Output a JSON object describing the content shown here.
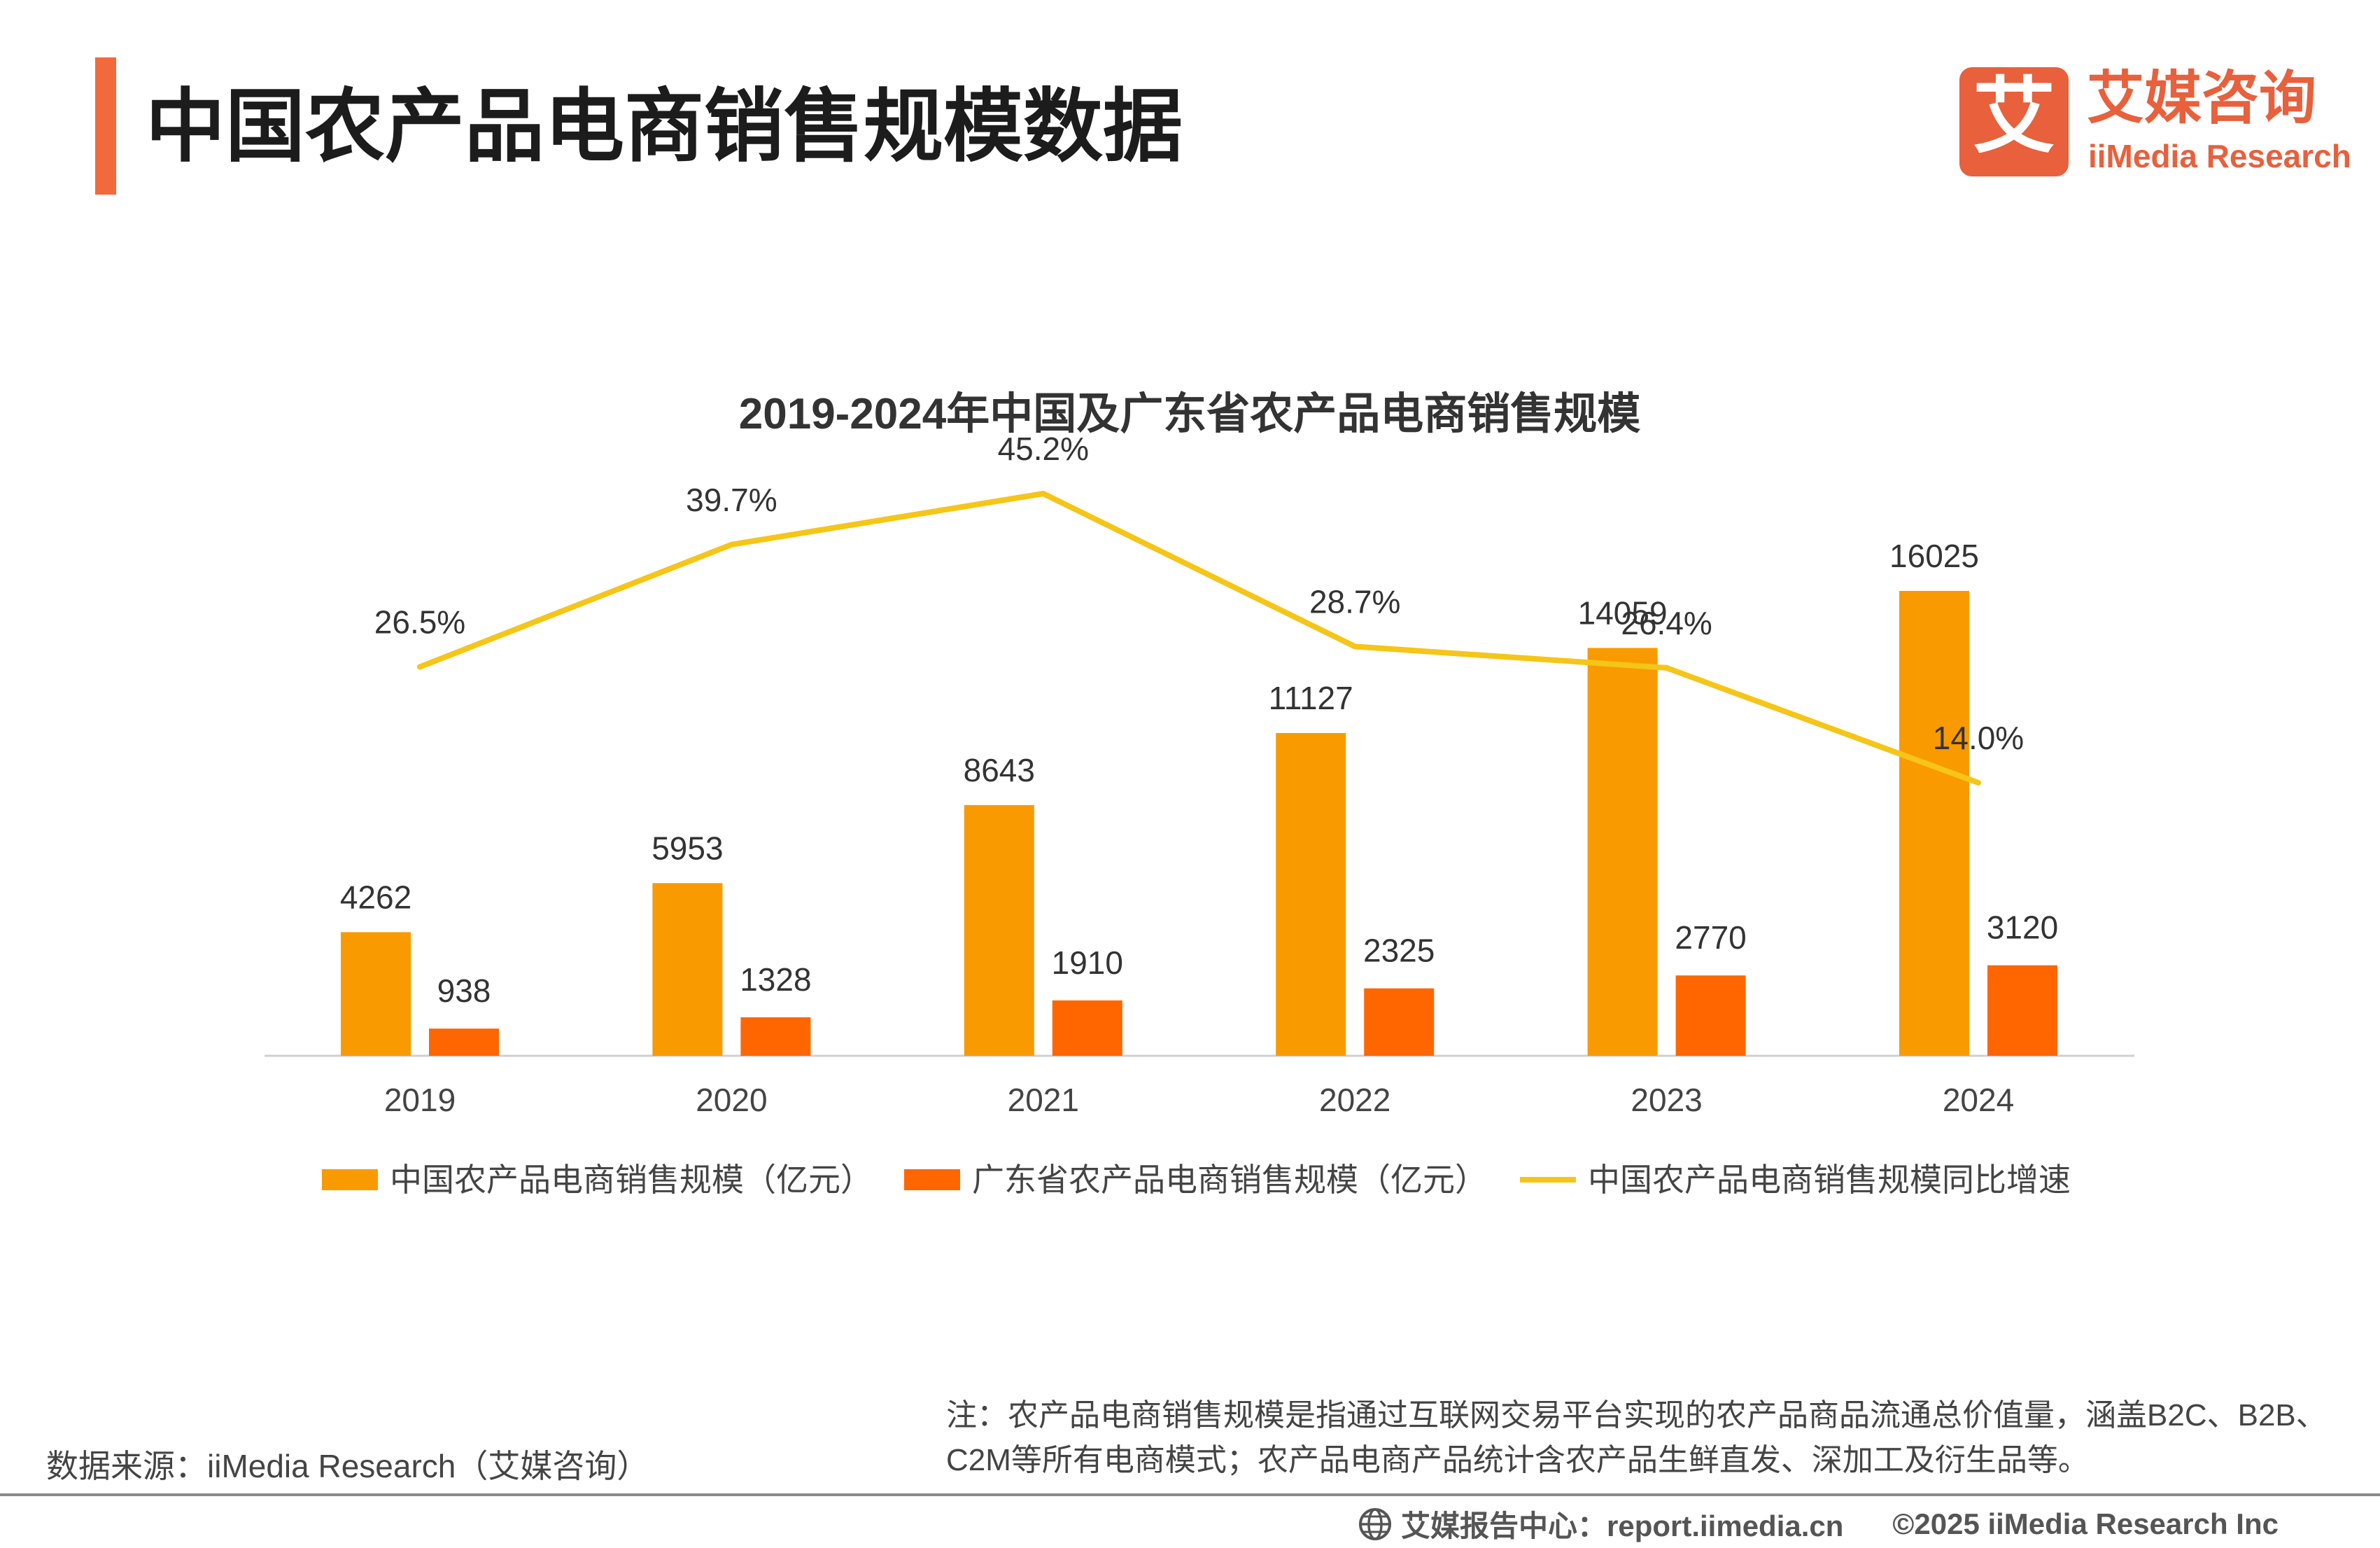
{
  "header": {
    "title": "中国农产品电商销售规模数据",
    "accent_color": "#f26a3c"
  },
  "logo": {
    "glyph": "艾",
    "name_cn": "艾媒咨询",
    "name_en": "iiMedia Research",
    "color": "#e8603c"
  },
  "chart_data": {
    "type": "bar",
    "title": "2019-2024年中国及广东省农产品电商销售规模",
    "xlabel": "",
    "ylabel": "",
    "categories": [
      "2019",
      "2020",
      "2021",
      "2022",
      "2023",
      "2024"
    ],
    "series": [
      {
        "name": "中国农产品电商销售规模（亿元）",
        "type": "bar",
        "color": "#f99a00",
        "values": [
          4262,
          5953,
          8643,
          11127,
          14059,
          16025
        ]
      },
      {
        "name": "广东省农产品电商销售规模（亿元）",
        "type": "bar",
        "color": "#ff6600",
        "values": [
          938,
          1328,
          1910,
          2325,
          2770,
          3120
        ]
      },
      {
        "name": "中国农产品电商销售规模同比增速",
        "type": "line",
        "color": "#f5c518",
        "values": [
          26.5,
          39.7,
          45.2,
          28.7,
          26.4,
          14.0
        ],
        "labels": [
          "26.5%",
          "39.7%",
          "45.2%",
          "28.7%",
          "26.4%",
          "14.0%"
        ]
      }
    ],
    "bar_ylim": [
      0,
      16025
    ],
    "grid": false,
    "legend_position": "bottom"
  },
  "footer": {
    "note": "注：农产品电商销售规模是指通过互联网交易平台实现的农产品商品流通总价值量，涵盖B2C、B2B、C2M等所有电商模式；农产品电商产品统计含农产品生鲜直发、深加工及衍生品等。",
    "source": "数据来源：iiMedia Research（艾媒咨询）",
    "center": "艾媒报告中心：report.iimedia.cn",
    "copyright": "©2025  iiMedia Research  Inc"
  }
}
